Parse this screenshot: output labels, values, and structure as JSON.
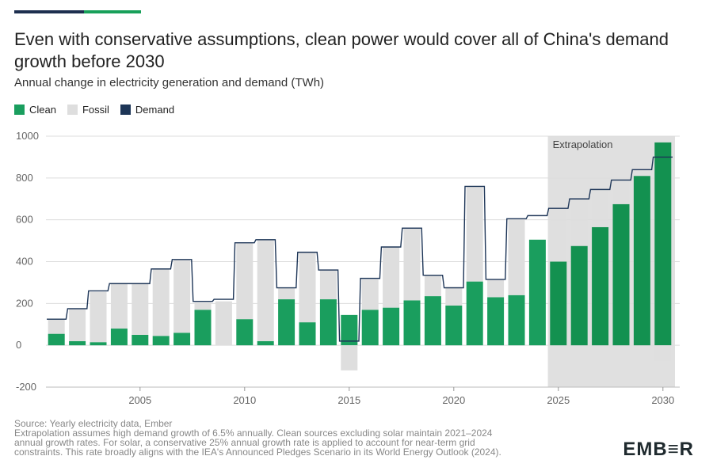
{
  "title": "Even with conservative assumptions, clean power would cover all of China's demand growth before 2030",
  "subtitle": "Annual change in electricity generation and demand (TWh)",
  "legend": [
    {
      "label": "Clean",
      "color": "#1a9e5e"
    },
    {
      "label": "Fossil",
      "color": "#dedede"
    },
    {
      "label": "Demand",
      "color": "#1d3557"
    }
  ],
  "annotation": "Extrapolation",
  "footer": {
    "source": "Source: Yearly electricity data, Ember",
    "note": "Extrapolation assumes high demand growth of 6.5% annually. Clean sources excluding solar maintain 2021–2024\nannual growth rates. For solar, a conservative 25% annual growth rate is applied to account for near-term grid\nconstraints. This rate broadly aligns with the IEA's Announced Pledges Scenario in its World Energy Outlook (2024)."
  },
  "brand": "EMB≡R",
  "colors": {
    "clean": "#1a9e5e",
    "clean_extrapolated": "#139150",
    "fossil": "#dedede",
    "demand": "#1d3557",
    "extrapolation_bg": "#e0e0e0",
    "grid": "#dcdcdc"
  },
  "chart_data": {
    "type": "bar",
    "title": "Even with conservative assumptions, clean power would cover all of China's demand growth before 2030",
    "subtitle": "Annual change in electricity generation and demand (TWh)",
    "ylim": [
      -200,
      1000
    ],
    "yticks": [
      -200,
      0,
      200,
      400,
      600,
      800,
      1000
    ],
    "xticks": [
      2005,
      2010,
      2015,
      2020,
      2025,
      2030
    ],
    "grid": true,
    "legend_position": "top-left",
    "extrapolation_start_year": 2025,
    "x": [
      2001,
      2002,
      2003,
      2004,
      2005,
      2006,
      2007,
      2008,
      2009,
      2010,
      2011,
      2012,
      2013,
      2014,
      2015,
      2016,
      2017,
      2018,
      2019,
      2020,
      2021,
      2022,
      2023,
      2024,
      2025,
      2026,
      2027,
      2028,
      2029,
      2030
    ],
    "series": [
      {
        "name": "Clean",
        "values": [
          55,
          20,
          15,
          80,
          50,
          45,
          60,
          170,
          0,
          125,
          20,
          220,
          110,
          220,
          145,
          170,
          180,
          215,
          235,
          190,
          305,
          230,
          240,
          505,
          400,
          475,
          565,
          675,
          810,
          970
        ]
      },
      {
        "name": "Fossil",
        "values": [
          70,
          155,
          240,
          215,
          245,
          320,
          350,
          35,
          210,
          365,
          485,
          55,
          335,
          140,
          -120,
          145,
          290,
          345,
          100,
          90,
          455,
          85,
          365,
          0,
          255,
          225,
          180,
          115,
          35,
          -75
        ]
      },
      {
        "name": "Demand",
        "values": [
          125,
          175,
          260,
          295,
          295,
          365,
          410,
          210,
          220,
          490,
          505,
          275,
          445,
          360,
          20,
          320,
          470,
          560,
          335,
          275,
          760,
          315,
          605,
          620,
          655,
          700,
          745,
          790,
          840,
          900
        ]
      }
    ]
  }
}
